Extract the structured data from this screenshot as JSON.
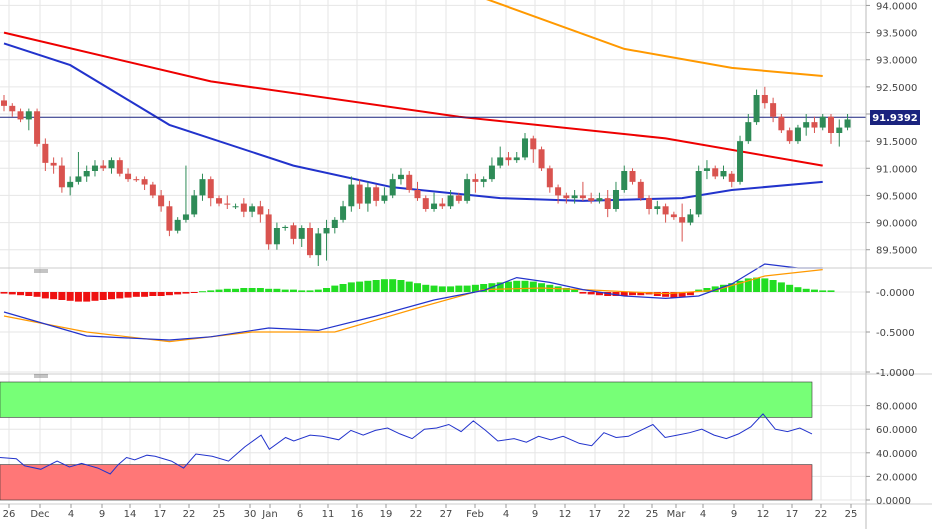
{
  "chart_data": {
    "type": "candlestick",
    "price_panel": {
      "y_ticks": [
        "94.0000",
        "93.5000",
        "93.0000",
        "92.5000",
        "92.0000",
        "91.5000",
        "91.0000",
        "90.5000",
        "90.0000",
        "89.5000"
      ],
      "ylim": [
        89.2,
        94.1
      ],
      "last_price": "91.9392",
      "colors": {
        "up": "#2e8b57",
        "down": "#d9534f",
        "ma_red": "#ee0000",
        "ma_blue": "#2233cc",
        "ma_orange": "#ff9900",
        "grid": "#e6e6e6",
        "last_line": "#1a237e",
        "last_label_bg": "#1a237e"
      },
      "candles": [
        [
          92.25,
          92.35,
          92.05,
          92.15
        ],
        [
          92.15,
          92.2,
          91.95,
          92.05
        ],
        [
          92.05,
          92.1,
          91.85,
          91.9
        ],
        [
          91.9,
          92.1,
          91.7,
          92.05
        ],
        [
          92.05,
          92.1,
          91.4,
          91.45
        ],
        [
          91.45,
          91.55,
          90.95,
          91.1
        ],
        [
          91.1,
          91.2,
          90.9,
          91.05
        ],
        [
          91.05,
          91.2,
          90.55,
          90.65
        ],
        [
          90.65,
          90.85,
          90.5,
          90.75
        ],
        [
          90.75,
          91.3,
          90.7,
          90.85
        ],
        [
          90.85,
          91.05,
          90.75,
          90.95
        ],
        [
          90.95,
          91.15,
          90.85,
          91.05
        ],
        [
          91.05,
          91.15,
          90.95,
          91.0
        ],
        [
          91.0,
          91.2,
          90.9,
          91.15
        ],
        [
          91.15,
          91.2,
          90.85,
          90.9
        ],
        [
          90.9,
          91.0,
          90.75,
          90.8
        ],
        [
          90.8,
          90.85,
          90.75,
          90.78
        ],
        [
          90.8,
          90.85,
          90.6,
          90.7
        ],
        [
          90.7,
          90.75,
          90.45,
          90.5
        ],
        [
          90.5,
          90.6,
          90.2,
          90.3
        ],
        [
          90.3,
          90.4,
          89.75,
          89.85
        ],
        [
          89.85,
          90.1,
          89.8,
          90.05
        ],
        [
          90.05,
          91.05,
          90.0,
          90.15
        ],
        [
          90.15,
          90.6,
          90.1,
          90.5
        ],
        [
          90.5,
          90.9,
          90.4,
          90.8
        ],
        [
          90.8,
          90.85,
          90.3,
          90.45
        ],
        [
          90.45,
          90.5,
          90.3,
          90.35
        ],
        [
          90.35,
          90.5,
          90.25,
          90.33
        ],
        [
          90.3,
          90.35,
          90.25,
          90.3
        ],
        [
          90.35,
          90.45,
          90.1,
          90.2
        ],
        [
          90.2,
          90.35,
          90.1,
          90.3
        ],
        [
          90.3,
          90.4,
          90.0,
          90.15
        ],
        [
          90.15,
          90.25,
          89.5,
          89.6
        ],
        [
          89.6,
          90.0,
          89.5,
          89.9
        ],
        [
          89.9,
          89.95,
          89.85,
          89.92
        ],
        [
          89.95,
          90.0,
          89.6,
          89.7
        ],
        [
          89.7,
          89.95,
          89.55,
          89.9
        ],
        [
          89.9,
          90.0,
          89.35,
          89.4
        ],
        [
          89.4,
          89.9,
          89.2,
          89.8
        ],
        [
          89.8,
          90.05,
          89.3,
          89.9
        ],
        [
          89.9,
          90.1,
          89.8,
          90.05
        ],
        [
          90.05,
          90.4,
          90.0,
          90.3
        ],
        [
          90.3,
          90.85,
          90.2,
          90.7
        ],
        [
          90.7,
          90.8,
          90.25,
          90.35
        ],
        [
          90.35,
          90.75,
          90.2,
          90.65
        ],
        [
          90.65,
          90.7,
          90.3,
          90.4
        ],
        [
          90.4,
          90.65,
          90.35,
          90.5
        ],
        [
          90.5,
          90.9,
          90.45,
          90.8
        ],
        [
          90.8,
          91.0,
          90.7,
          90.88
        ],
        [
          90.88,
          90.95,
          90.55,
          90.6
        ],
        [
          90.6,
          90.75,
          90.4,
          90.45
        ],
        [
          90.45,
          90.5,
          90.2,
          90.25
        ],
        [
          90.25,
          90.55,
          90.2,
          90.35
        ],
        [
          90.35,
          90.45,
          90.25,
          90.3
        ],
        [
          90.3,
          90.6,
          90.25,
          90.5
        ],
        [
          90.5,
          90.55,
          90.35,
          90.4
        ],
        [
          90.4,
          90.9,
          90.35,
          90.8
        ],
        [
          90.8,
          90.9,
          90.55,
          90.75
        ],
        [
          90.75,
          90.85,
          90.65,
          90.8
        ],
        [
          90.8,
          91.2,
          90.75,
          91.05
        ],
        [
          91.05,
          91.4,
          91.0,
          91.2
        ],
        [
          91.2,
          91.3,
          91.05,
          91.15
        ],
        [
          91.15,
          91.3,
          91.1,
          91.2
        ],
        [
          91.2,
          91.65,
          91.15,
          91.55
        ],
        [
          91.55,
          91.6,
          91.1,
          91.35
        ],
        [
          91.35,
          91.4,
          90.95,
          91.0
        ],
        [
          91.0,
          91.05,
          90.55,
          90.65
        ],
        [
          90.65,
          90.7,
          90.35,
          90.5
        ],
        [
          90.5,
          90.55,
          90.35,
          90.45
        ],
        [
          90.45,
          90.6,
          90.35,
          90.5
        ],
        [
          90.5,
          90.75,
          90.4,
          90.45
        ],
        [
          90.45,
          90.55,
          90.35,
          90.4
        ],
        [
          90.4,
          90.55,
          90.35,
          90.45
        ],
        [
          90.45,
          90.6,
          90.1,
          90.25
        ],
        [
          90.25,
          90.75,
          90.2,
          90.6
        ],
        [
          90.6,
          91.05,
          90.55,
          90.95
        ],
        [
          90.95,
          91.0,
          90.7,
          90.75
        ],
        [
          90.75,
          90.8,
          90.4,
          90.45
        ],
        [
          90.45,
          90.5,
          90.15,
          90.25
        ],
        [
          90.25,
          90.4,
          90.15,
          90.3
        ],
        [
          90.3,
          90.35,
          90.0,
          90.15
        ],
        [
          90.15,
          90.2,
          90.05,
          90.1
        ],
        [
          90.1,
          90.35,
          89.65,
          90.0
        ],
        [
          90.0,
          90.25,
          89.95,
          90.15
        ],
        [
          90.15,
          91.05,
          90.1,
          90.95
        ],
        [
          90.95,
          91.15,
          90.8,
          91.0
        ],
        [
          91.0,
          91.05,
          90.8,
          90.85
        ],
        [
          90.85,
          91.05,
          90.8,
          90.95
        ],
        [
          90.9,
          90.95,
          90.65,
          90.75
        ],
        [
          90.75,
          91.6,
          90.7,
          91.5
        ],
        [
          91.5,
          92.0,
          91.45,
          91.85
        ],
        [
          91.85,
          92.45,
          91.8,
          92.35
        ],
        [
          92.35,
          92.5,
          92.1,
          92.2
        ],
        [
          92.2,
          92.3,
          91.85,
          91.95
        ],
        [
          91.95,
          92.0,
          91.65,
          91.7
        ],
        [
          91.7,
          91.75,
          91.45,
          91.5
        ],
        [
          91.5,
          91.8,
          91.45,
          91.75
        ],
        [
          91.75,
          92.0,
          91.6,
          91.85
        ],
        [
          91.85,
          91.95,
          91.65,
          91.75
        ],
        [
          91.75,
          92.0,
          91.7,
          91.95
        ],
        [
          91.95,
          92.0,
          91.45,
          91.65
        ],
        [
          91.65,
          91.9,
          91.4,
          91.75
        ],
        [
          91.75,
          92.0,
          91.7,
          91.9
        ]
      ],
      "ma_red": [
        [
          0,
          93.5
        ],
        [
          25,
          92.6
        ],
        [
          55,
          91.95
        ],
        [
          80,
          91.55
        ],
        [
          99,
          91.05
        ]
      ],
      "ma_blue": [
        [
          0,
          93.3
        ],
        [
          8,
          92.9
        ],
        [
          20,
          91.8
        ],
        [
          35,
          91.05
        ],
        [
          47,
          90.65
        ],
        [
          60,
          90.45
        ],
        [
          70,
          90.4
        ],
        [
          82,
          90.45
        ],
        [
          88,
          90.6
        ],
        [
          99,
          90.75
        ]
      ],
      "ma_orange": [
        [
          0,
          96.0
        ],
        [
          55,
          94.3
        ],
        [
          75,
          93.2
        ],
        [
          88,
          92.85
        ],
        [
          99,
          92.7
        ]
      ]
    },
    "macd_panel": {
      "y_ticks": [
        "-0.0000",
        "-0.5000",
        "-1.0000"
      ],
      "ylim": [
        -1.0,
        0.2
      ],
      "histogram": [
        -0.02,
        -0.03,
        -0.04,
        -0.05,
        -0.06,
        -0.08,
        -0.09,
        -0.1,
        -0.11,
        -0.12,
        -0.12,
        -0.11,
        -0.1,
        -0.09,
        -0.08,
        -0.07,
        -0.06,
        -0.06,
        -0.05,
        -0.05,
        -0.04,
        -0.03,
        -0.02,
        -0.01,
        0.01,
        0.02,
        0.03,
        0.04,
        0.04,
        0.05,
        0.05,
        0.05,
        0.04,
        0.04,
        0.03,
        0.03,
        0.02,
        0.02,
        0.03,
        0.05,
        0.08,
        0.1,
        0.12,
        0.13,
        0.14,
        0.15,
        0.16,
        0.16,
        0.15,
        0.13,
        0.11,
        0.09,
        0.08,
        0.07,
        0.07,
        0.08,
        0.08,
        0.09,
        0.1,
        0.11,
        0.12,
        0.13,
        0.14,
        0.14,
        0.13,
        0.11,
        0.09,
        0.07,
        0.05,
        0.03,
        -0.02,
        -0.03,
        -0.04,
        -0.05,
        -0.05,
        -0.05,
        -0.04,
        -0.04,
        -0.03,
        -0.05,
        -0.06,
        -0.07,
        -0.06,
        -0.04,
        0.03,
        0.05,
        0.07,
        0.09,
        0.11,
        0.14,
        0.17,
        0.18,
        0.17,
        0.15,
        0.12,
        0.09,
        0.06,
        0.04,
        0.03,
        0.02,
        0.02
      ],
      "macd_line": [
        [
          0,
          -0.25
        ],
        [
          10,
          -0.55
        ],
        [
          20,
          -0.6
        ],
        [
          25,
          -0.56
        ],
        [
          32,
          -0.45
        ],
        [
          38,
          -0.48
        ],
        [
          45,
          -0.3
        ],
        [
          52,
          -0.1
        ],
        [
          58,
          0.02
        ],
        [
          62,
          0.18
        ],
        [
          66,
          0.12
        ],
        [
          70,
          0.03
        ],
        [
          75,
          -0.05
        ],
        [
          80,
          -0.08
        ],
        [
          84,
          -0.05
        ],
        [
          88,
          0.1
        ],
        [
          92,
          0.35
        ],
        [
          96,
          0.3
        ],
        [
          99,
          0.3
        ]
      ],
      "signal_line": [
        [
          0,
          -0.3
        ],
        [
          10,
          -0.5
        ],
        [
          20,
          -0.62
        ],
        [
          30,
          -0.5
        ],
        [
          40,
          -0.5
        ],
        [
          50,
          -0.2
        ],
        [
          58,
          0.03
        ],
        [
          65,
          0.05
        ],
        [
          72,
          0.02
        ],
        [
          80,
          -0.02
        ],
        [
          86,
          0.02
        ],
        [
          92,
          0.2
        ],
        [
          99,
          0.28
        ]
      ]
    },
    "rsi_panel": {
      "y_ticks": [
        "80.0000",
        "60.0000",
        "40.0000",
        "20.0000",
        "0.0000"
      ],
      "ylim": [
        0,
        100
      ],
      "overbought": 70,
      "oversold": 30,
      "values": [
        [
          0,
          36
        ],
        [
          4,
          35
        ],
        [
          6,
          29
        ],
        [
          10,
          26
        ],
        [
          14,
          33
        ],
        [
          17,
          28
        ],
        [
          20,
          31
        ],
        [
          24,
          27
        ],
        [
          27,
          22
        ],
        [
          29,
          30
        ],
        [
          31,
          36
        ],
        [
          33,
          34
        ],
        [
          36,
          38
        ],
        [
          38,
          37
        ],
        [
          42,
          33
        ],
        [
          45,
          27
        ],
        [
          48,
          39
        ],
        [
          52,
          37
        ],
        [
          56,
          33
        ],
        [
          60,
          45
        ],
        [
          64,
          55
        ],
        [
          66,
          43
        ],
        [
          70,
          53
        ],
        [
          72,
          50
        ],
        [
          76,
          55
        ],
        [
          79,
          54
        ],
        [
          83,
          51
        ],
        [
          86,
          59
        ],
        [
          89,
          55
        ],
        [
          92,
          59
        ],
        [
          95,
          61
        ],
        [
          98,
          56
        ],
        [
          101,
          52
        ],
        [
          104,
          60
        ],
        [
          107,
          61
        ],
        [
          110,
          64
        ],
        [
          113,
          58
        ],
        [
          116,
          67
        ],
        [
          119,
          59
        ],
        [
          122,
          50
        ],
        [
          126,
          52
        ],
        [
          129,
          49
        ],
        [
          132,
          54
        ],
        [
          135,
          51
        ],
        [
          138,
          54
        ],
        [
          142,
          48
        ],
        [
          145,
          46
        ],
        [
          148,
          57
        ],
        [
          151,
          53
        ],
        [
          154,
          54
        ],
        [
          157,
          59
        ],
        [
          160,
          64
        ],
        [
          163,
          53
        ],
        [
          166,
          55
        ],
        [
          169,
          57
        ],
        [
          172,
          60
        ],
        [
          175,
          55
        ],
        [
          178,
          52
        ],
        [
          181,
          56
        ],
        [
          184,
          62
        ],
        [
          187,
          73
        ],
        [
          190,
          60
        ],
        [
          193,
          58
        ],
        [
          196,
          61
        ],
        [
          199,
          56
        ]
      ],
      "rsi_x_max": 199
    },
    "x_ticks": [
      "26",
      "Dec",
      "4",
      "9",
      "14",
      "17",
      "22",
      "25",
      "30",
      "Jan",
      "6",
      "11",
      "16",
      "19",
      "22",
      "27",
      "Feb",
      "4",
      "9",
      "12",
      "17",
      "22",
      "25",
      "Mar",
      "4",
      "9",
      "12",
      "17",
      "22",
      "25"
    ]
  }
}
